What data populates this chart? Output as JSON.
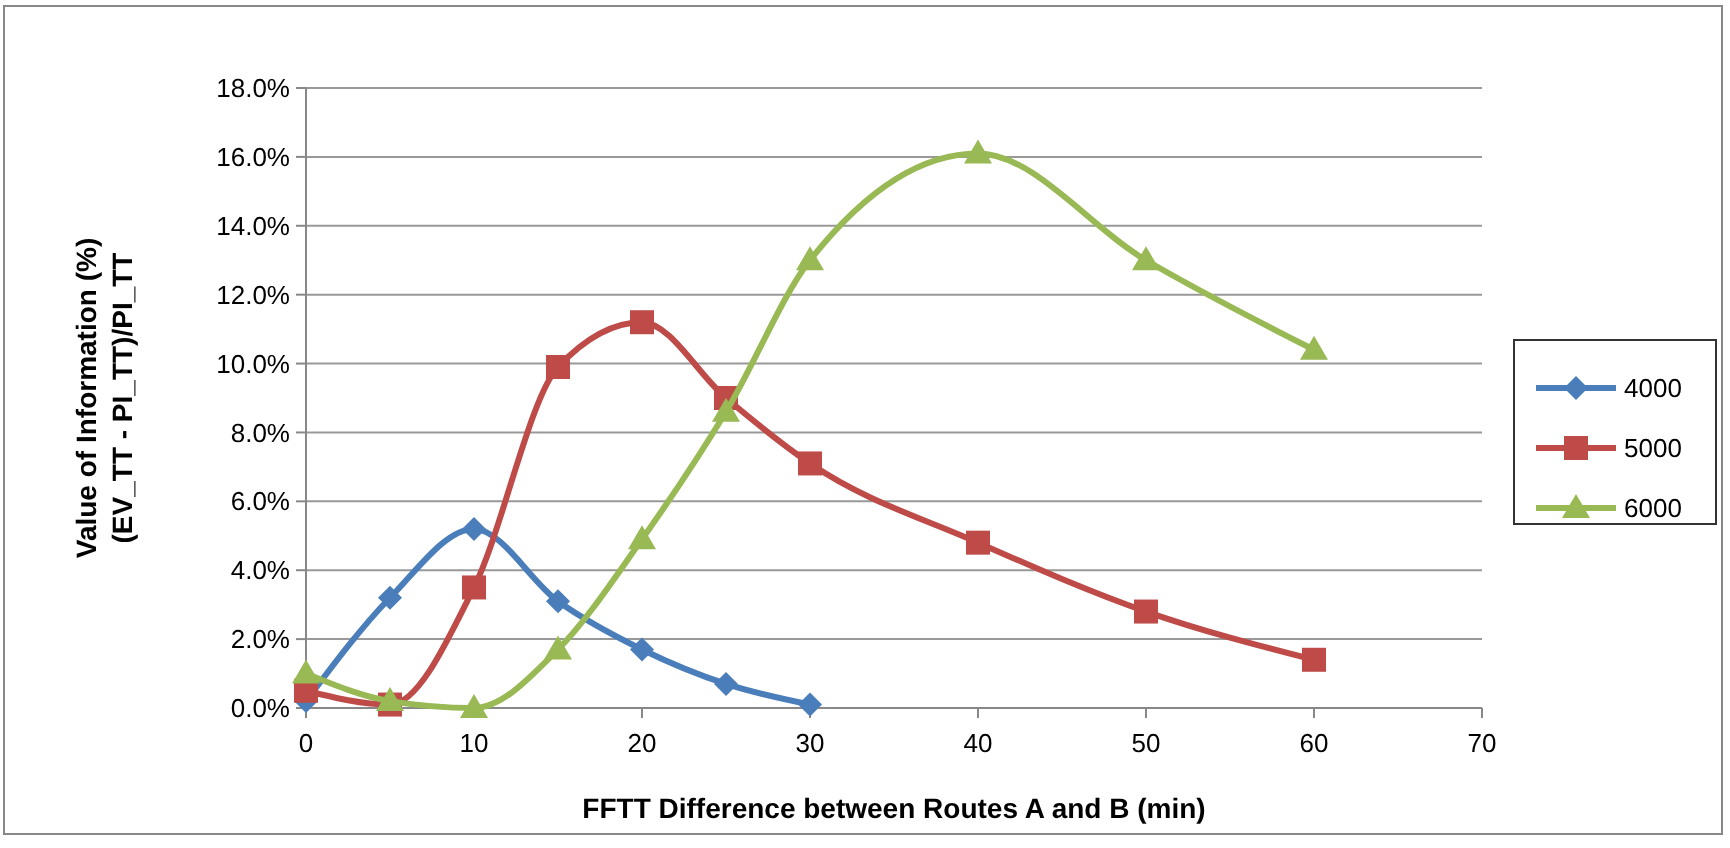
{
  "chart_data": {
    "type": "line",
    "xlabel": "FFTT Difference between Routes A and B (min)",
    "ylabel": "Value of Information (%)\n(EV_TT - PI_TT)/PI_TT",
    "xlim": [
      0,
      70
    ],
    "xticks": [
      0,
      10,
      20,
      30,
      40,
      50,
      60,
      70
    ],
    "ylim": [
      0,
      18
    ],
    "yticks": [
      {
        "value": 0,
        "label": "0.0%"
      },
      {
        "value": 2,
        "label": "2.0%"
      },
      {
        "value": 4,
        "label": "4.0%"
      },
      {
        "value": 6,
        "label": "6.0%"
      },
      {
        "value": 8,
        "label": "8.0%"
      },
      {
        "value": 10,
        "label": "10.0%"
      },
      {
        "value": 12,
        "label": "12.0%"
      },
      {
        "value": 14,
        "label": "14.0%"
      },
      {
        "value": 16,
        "label": "16.0%"
      },
      {
        "value": 18,
        "label": "18.0%"
      }
    ],
    "grid": "y",
    "legend": "right",
    "line_style": "solid",
    "series": [
      {
        "name": "4000",
        "color": "#4a7ebb",
        "marker": "diamond",
        "x": [
          0,
          5,
          10,
          15,
          20,
          25,
          30
        ],
        "values": [
          0.2,
          3.2,
          5.2,
          3.1,
          1.7,
          0.7,
          0.1
        ]
      },
      {
        "name": "5000",
        "color": "#be4b48",
        "marker": "square",
        "x": [
          0,
          5,
          10,
          15,
          20,
          25,
          30,
          40,
          50,
          60
        ],
        "values": [
          0.5,
          0.1,
          3.5,
          9.9,
          11.2,
          9.0,
          7.1,
          4.8,
          2.8,
          1.4
        ]
      },
      {
        "name": "6000",
        "color": "#98b954",
        "marker": "triangle",
        "x": [
          0,
          5,
          10,
          15,
          20,
          25,
          30,
          40,
          50,
          60
        ],
        "values": [
          1.0,
          0.2,
          0.0,
          1.7,
          4.9,
          8.6,
          13.0,
          16.1,
          13.0,
          10.4
        ]
      }
    ]
  }
}
